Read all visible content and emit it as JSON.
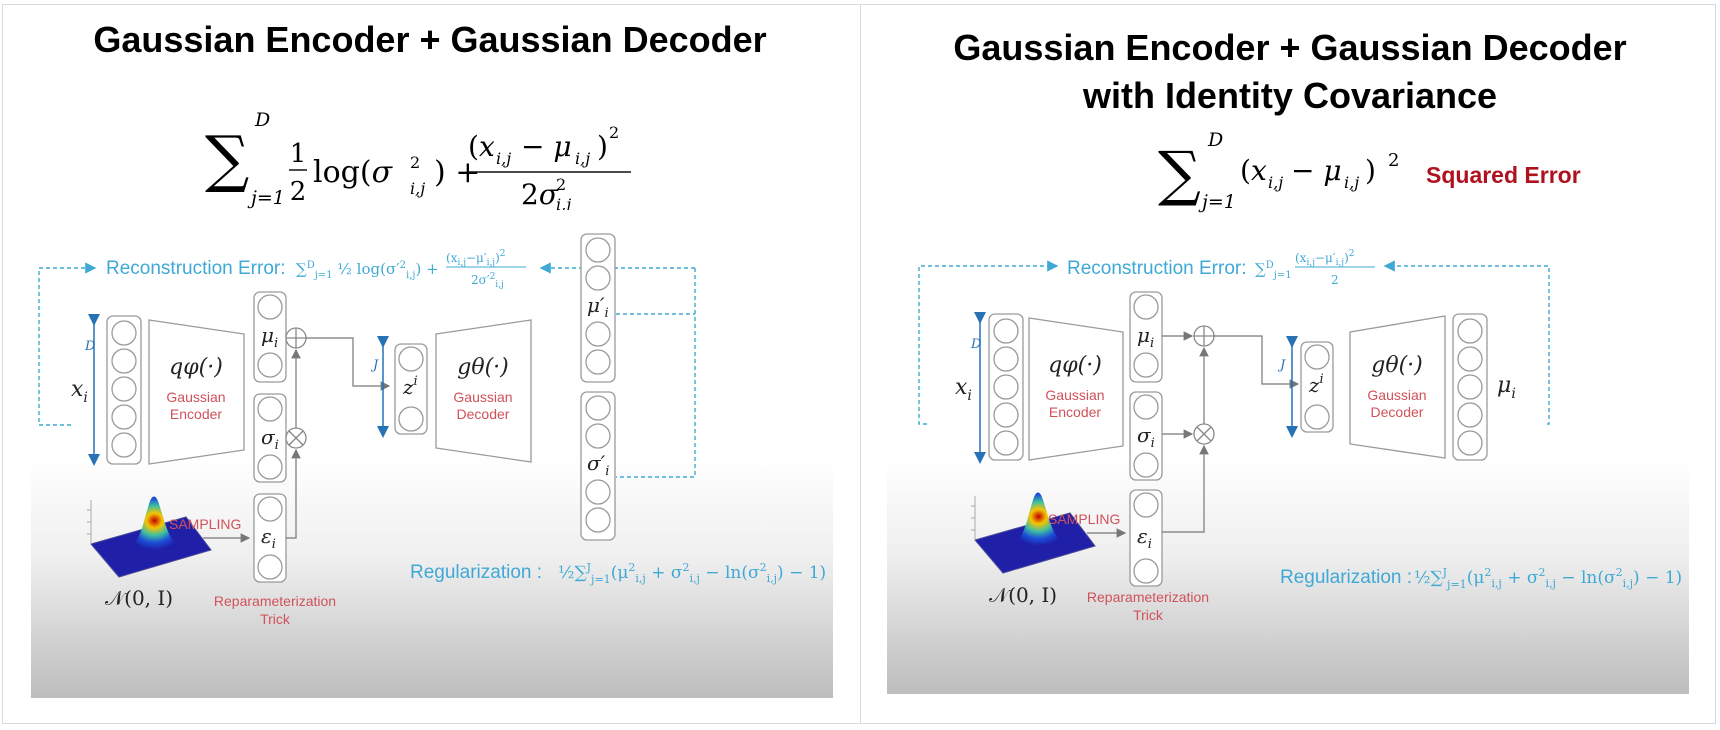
{
  "left": {
    "title": "Gaussian Encoder + Gaussian Decoder",
    "diagram": {
      "recon_label": "Reconstruction Error:",
      "x_label": "x",
      "x_sub": "i",
      "d_label": "D",
      "encoder_fn": "qφ(·)",
      "encoder_name_1": "Gaussian",
      "encoder_name_2": "Encoder",
      "mu_label": "μ",
      "sigma_label": "σ",
      "eps_label": "ε",
      "sub_i": "i",
      "j_label": "J",
      "z_label": "z",
      "decoder_fn": "gθ(·)",
      "decoder_name_1": "Gaussian",
      "decoder_name_2": "Decoder",
      "mu_prime_label": "μ′",
      "sigma_prime_label": "σ′",
      "sampling": "SAMPLING",
      "normal_label": "𝒩(0, I)",
      "reparam_1": "Reparameterization",
      "reparam_2": "Trick",
      "regularization_label": "Regularization :"
    }
  },
  "right": {
    "title_line1": "Gaussian Encoder + Gaussian Decoder",
    "title_line2": "with Identity Covariance",
    "squared_error": "Squared Error",
    "diagram": {
      "recon_label": "Reconstruction Error:",
      "x_label": "x",
      "x_sub": "i",
      "d_label": "D",
      "encoder_fn": "qφ(·)",
      "encoder_name_1": "Gaussian",
      "encoder_name_2": "Encoder",
      "mu_label": "μ",
      "sigma_label": "σ",
      "eps_label": "ε",
      "sub_i": "i",
      "j_label": "J",
      "z_label": "z",
      "decoder_fn": "gθ(·)",
      "decoder_name_1": "Gaussian",
      "decoder_name_2": "Decoder",
      "out_label": "μ",
      "sampling": "SAMPLING",
      "normal_label": "𝒩(0, I)",
      "reparam_1": "Reparameterization",
      "reparam_2": "Trick",
      "regularization_label": "Regularization :"
    }
  },
  "colors": {
    "blue": "#3fa9d6",
    "dark_blue": "#2672b5",
    "red_label": "#d0525a",
    "squared_error": "#b0111e",
    "box_stroke": "#9a9a9a"
  }
}
